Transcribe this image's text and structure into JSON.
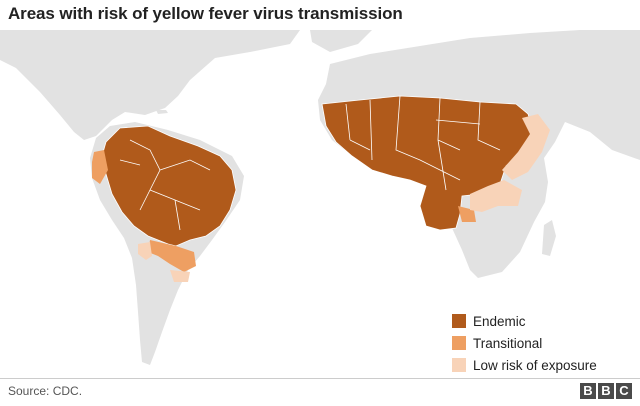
{
  "title": "Areas with risk of yellow fever virus transmission",
  "legend": {
    "items": [
      {
        "label": "Endemic",
        "color": "#b05a1b"
      },
      {
        "label": "Transitional",
        "color": "#ee9f62"
      },
      {
        "label": "Low risk of exposure",
        "color": "#f8d3b8"
      }
    ]
  },
  "source": "Source: CDC.",
  "logo": [
    "B",
    "B",
    "C"
  ],
  "colors": {
    "land": "#e2e2e2",
    "background": "#ffffff",
    "border": "#ffffff"
  }
}
